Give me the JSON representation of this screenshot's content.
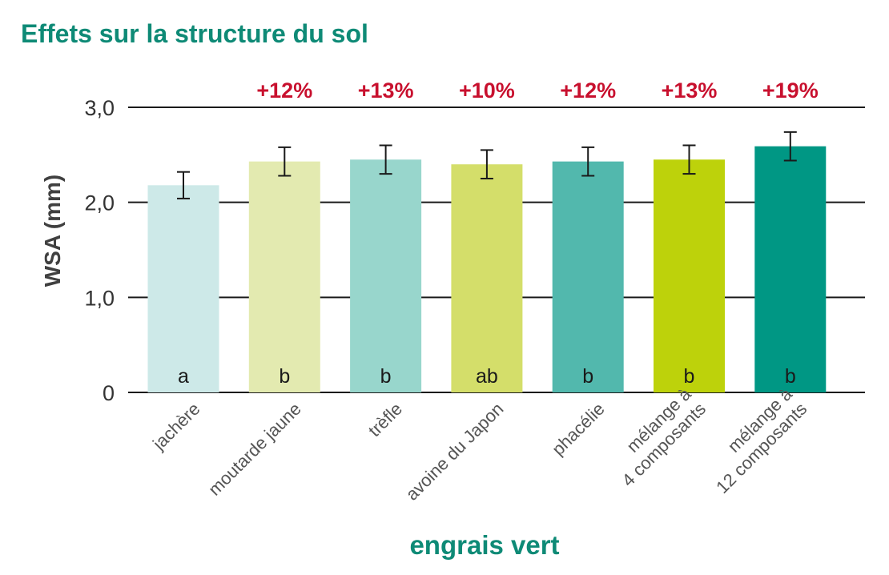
{
  "title": "Effets sur la structure du sol",
  "chart_data": {
    "type": "bar",
    "xlabel": "engrais vert",
    "ylabel": "WSA (mm)",
    "ylim": [
      0,
      3.0
    ],
    "yticks": [
      0,
      1.0,
      2.0,
      3.0
    ],
    "ytick_labels": [
      "0",
      "1,0",
      "2,0",
      "3,0"
    ],
    "grid": true,
    "categories": [
      [
        "jachère"
      ],
      [
        "moutarde jaune"
      ],
      [
        "trèfle"
      ],
      [
        "avoine du Japon"
      ],
      [
        "phacélie"
      ],
      [
        "mélange à",
        "4 composants"
      ],
      [
        "mélange à",
        "12 composants"
      ]
    ],
    "values": [
      2.18,
      2.43,
      2.45,
      2.4,
      2.43,
      2.45,
      2.59
    ],
    "errors": [
      0.14,
      0.15,
      0.15,
      0.15,
      0.15,
      0.15,
      0.15
    ],
    "significance": [
      "a",
      "b",
      "b",
      "ab",
      "b",
      "b",
      "b"
    ],
    "increase_labels": [
      "",
      "+12%",
      "+13%",
      "+10%",
      "+12%",
      "+13%",
      "+19%"
    ],
    "colors": [
      "#cde9e8",
      "#e3eab0",
      "#98d6cc",
      "#d4de6a",
      "#52b8ad",
      "#bdd20b",
      "#009784"
    ]
  }
}
